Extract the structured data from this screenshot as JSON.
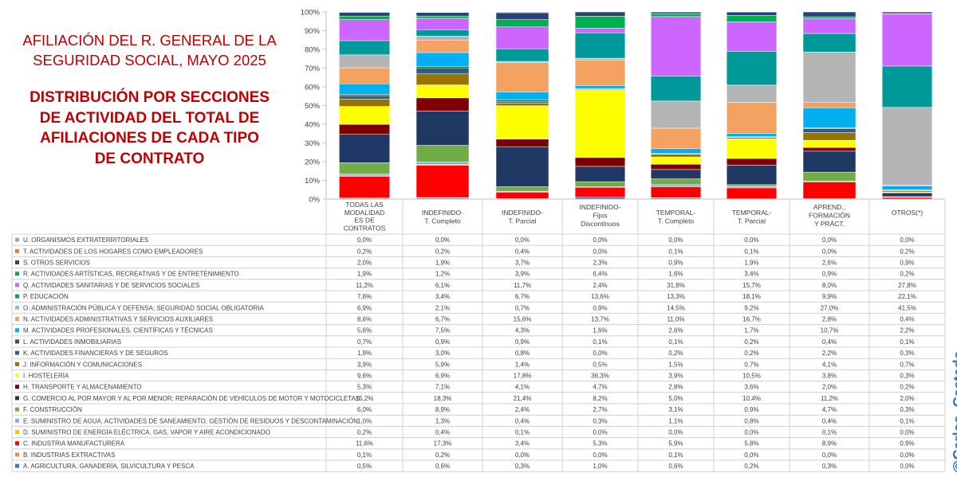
{
  "title_line1": "AFILIACIÓN DEL R. GENERAL DE LA\nSEGURIDAD SOCIAL, MAYO 2025",
  "title_line2": "DISTRIBUCIÓN POR SECCIONES\nDE ACTIVIDAD DEL TOTAL DE\nAFILIACIONES DE CADA TIPO\nDE CONTRATO",
  "watermark": "@Carlos_Castedo",
  "chart_data": {
    "type": "bar",
    "stacked": true,
    "ylim": [
      0,
      100
    ],
    "y_ticks": [
      "0%",
      "10%",
      "20%",
      "30%",
      "40%",
      "50%",
      "60%",
      "70%",
      "80%",
      "90%",
      "100%"
    ],
    "grid": false,
    "categories": [
      [
        "TODAS LAS",
        "MODALIDAD",
        "ES DE",
        "CONTRATOS"
      ],
      [
        "INDEFINIDO-",
        "T. Completo"
      ],
      [
        "INDEFINIDO-",
        "T. Parcial"
      ],
      [
        "INDEFINIDO-",
        "Fijos",
        "Discontinuos"
      ],
      [
        "TEMPORAL-",
        "T. Completo"
      ],
      [
        "TEMPORAL-",
        "T. Parcial"
      ],
      [
        "APREND.,",
        "FORMACIÓN",
        "Y PRÁCT."
      ],
      [
        "OTROS(*)"
      ]
    ],
    "series": [
      {
        "name": "U. ORGANISMOS EXTRATERRITORIALES",
        "color": "#a5a5a5",
        "values": [
          "0,0%",
          "0,0%",
          "0,0%",
          "0,0%",
          "0,0%",
          "0,0%",
          "0,0%",
          "0,0%"
        ]
      },
      {
        "name": "T. ACTIVIDADES DE LOS HOGARES COMO EMPLEADORES",
        "color": "#ed7d31",
        "values": [
          "0,2%",
          "0,2%",
          "0,4%",
          "0,0%",
          "0,1%",
          "0,1%",
          "0,0%",
          "0,2%"
        ]
      },
      {
        "name": "S. OTROS SERVICIOS",
        "color": "#264478",
        "values": [
          "2,0%",
          "1,9%",
          "3,7%",
          "2,3%",
          "0,9%",
          "1,9%",
          "2,6%",
          "0,9%"
        ]
      },
      {
        "name": "R. ACTIVIDADES ARTÍSTICAS, RECREATIVAS Y DE ENTRETENIMIENTO",
        "color": "#00b050",
        "values": [
          "1,9%",
          "1,2%",
          "3,9%",
          "6,4%",
          "1,6%",
          "3,4%",
          "0,9%",
          "0,2%"
        ]
      },
      {
        "name": "Q. ACTIVIDADES SANITARIAS Y DE SERVICIOS SOCIALES",
        "color": "#cc66ff",
        "values": [
          "11,2%",
          "6,1%",
          "11,7%",
          "2,4%",
          "31,8%",
          "15,7%",
          "8,0%",
          "27,8%"
        ]
      },
      {
        "name": "P. EDUCACIÓN",
        "color": "#009999",
        "values": [
          "7,6%",
          "3,4%",
          "6,7%",
          "13,6%",
          "13,3%",
          "18,1%",
          "9,9%",
          "22,1%"
        ]
      },
      {
        "name": "O. ADMINISTRACIÓN PÚBLICA Y DEFENSA; SEGURIDAD SOCIAL OBLIGATORIA",
        "color": "#b4b4b4",
        "values": [
          "6,9%",
          "2,1%",
          "0,7%",
          "0,9%",
          "14,5%",
          "9,2%",
          "27,0%",
          "41,5%"
        ]
      },
      {
        "name": "N. ACTIVIDADES ADMINISTRATIVAS Y SERVICIOS AUXILIARES",
        "color": "#f4a261",
        "values": [
          "8,6%",
          "6,7%",
          "15,6%",
          "13,7%",
          "11,0%",
          "16,7%",
          "2,8%",
          "0,4%"
        ]
      },
      {
        "name": "M. ACTIVIDADES PROFESIONALES, CIENTÍFICAS Y TÉCNICAS",
        "color": "#00b0f0",
        "values": [
          "5,6%",
          "7,5%",
          "4,3%",
          "1,6%",
          "2,6%",
          "1,7%",
          "10,7%",
          "2,2%"
        ]
      },
      {
        "name": "L. ACTIVIDADES INMOBILIARIAS",
        "color": "#375623",
        "values": [
          "0,7%",
          "0,9%",
          "0,9%",
          "0,1%",
          "0,1%",
          "0,2%",
          "0,4%",
          "0,1%"
        ]
      },
      {
        "name": "K. ACTIVIDADES FINANCIERAS Y DE SEGUROS",
        "color": "#2f5f78",
        "values": [
          "1,9%",
          "3,0%",
          "0,8%",
          "0,0%",
          "0,2%",
          "0,2%",
          "2,2%",
          "0,3%"
        ]
      },
      {
        "name": "J. INFORMACIÓN Y COMUNICACIONES",
        "color": "#997300",
        "values": [
          "3,9%",
          "5,9%",
          "1,4%",
          "0,5%",
          "1,5%",
          "0,7%",
          "4,1%",
          "0,7%"
        ]
      },
      {
        "name": "I. HOSTELERÍA",
        "color": "#ffff00",
        "values": [
          "9,6%",
          "6,9%",
          "17,8%",
          "36,3%",
          "3,9%",
          "10,5%",
          "3,8%",
          "0,3%"
        ]
      },
      {
        "name": "H. TRANSPORTE Y ALMACENAMIENTO",
        "color": "#7f0000",
        "values": [
          "5,3%",
          "7,1%",
          "4,1%",
          "4,7%",
          "2,8%",
          "3,6%",
          "2,0%",
          "0,2%"
        ]
      },
      {
        "name": "G. COMERCIO AL POR MAYOR Y AL POR MENOR; REPARACIÓN DE VEHÍCULOS DE MOTOR Y MOTOCICLETAS",
        "color": "#203864",
        "values": [
          "15,2%",
          "18,3%",
          "21,4%",
          "8,2%",
          "5,0%",
          "10,4%",
          "11,2%",
          "2,0%"
        ]
      },
      {
        "name": "F. CONSTRUCCIÓN",
        "color": "#70ad47",
        "values": [
          "6,0%",
          "8,9%",
          "2,4%",
          "2,7%",
          "3,1%",
          "0,9%",
          "4,7%",
          "0,3%"
        ]
      },
      {
        "name": "E. SUMINISTRO DE AGUA, ACTIVIDADES DE SANEAMIENTO, GESTIÓN DE RESIDUOS Y DESCONTAMINACIÓN",
        "color": "#8faadc",
        "values": [
          "1,0%",
          "1,3%",
          "0,4%",
          "0,3%",
          "1,1%",
          "0,8%",
          "0,4%",
          "0,1%"
        ]
      },
      {
        "name": "D. SUMINISTRO DE ENERGÍA ELÉCTRICA, GAS, VAPOR Y AIRE ACONDICIONADO",
        "color": "#ffc000",
        "values": [
          "0,2%",
          "0,4%",
          "0,1%",
          "0,0%",
          "0,0%",
          "0,0%",
          "0,1%",
          "0,0%"
        ]
      },
      {
        "name": "C. INDUSTRIA MANUFACTURERA",
        "color": "#ff0000",
        "values": [
          "11,6%",
          "17,3%",
          "3,4%",
          "5,3%",
          "5,9%",
          "5,8%",
          "8,9%",
          "0,9%"
        ]
      },
      {
        "name": "B. INDUSTRIAS EXTRACTIVAS",
        "color": "#f08b55",
        "values": [
          "0,1%",
          "0,2%",
          "0,0%",
          "0,0%",
          "0,1%",
          "0,0%",
          "0,0%",
          "0,0%"
        ]
      },
      {
        "name": "A. AGRICULTURA, GANADERÍA, SILVICULTURA Y PESCA",
        "color": "#4472c4",
        "values": [
          "0,5%",
          "0,6%",
          "0,3%",
          "1,0%",
          "0,6%",
          "0,2%",
          "0,3%",
          "0,0%"
        ]
      }
    ]
  }
}
